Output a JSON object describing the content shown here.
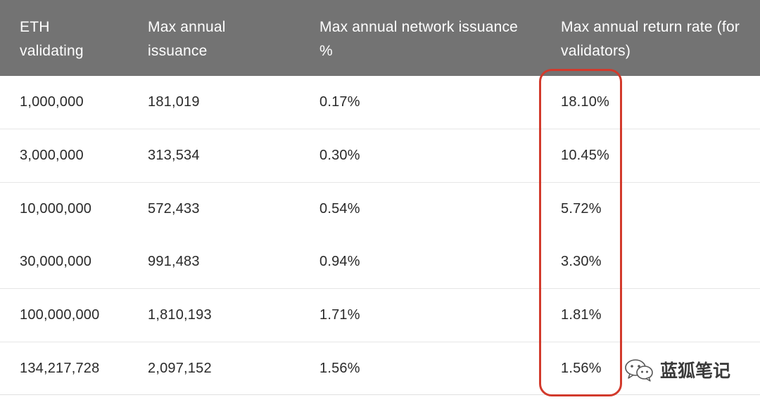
{
  "table": {
    "headers": [
      [
        "ETH",
        "validating"
      ],
      [
        "Max annual",
        "issuance"
      ],
      [
        "Max annual network issuance",
        "%"
      ],
      [
        "Max annual return rate (for",
        "validators)"
      ]
    ],
    "rows": [
      [
        "1,000,000",
        "181,019",
        "0.17%",
        "18.10%"
      ],
      [
        "3,000,000",
        "313,534",
        "0.30%",
        "10.45%"
      ],
      [
        "10,000,000",
        "572,433",
        "0.54%",
        "5.72%"
      ],
      [
        "30,000,000",
        "991,483",
        "0.94%",
        "3.30%"
      ],
      [
        "100,000,000",
        "1,810,193",
        "1.71%",
        "1.81%"
      ],
      [
        "134,217,728",
        "2,097,152",
        "1.56%",
        "1.56%"
      ]
    ]
  },
  "colors": {
    "header_bg": "#737373",
    "highlight": "#d23a2c"
  },
  "watermark": {
    "icon": "wechat-icon",
    "text": "蓝狐笔记"
  }
}
